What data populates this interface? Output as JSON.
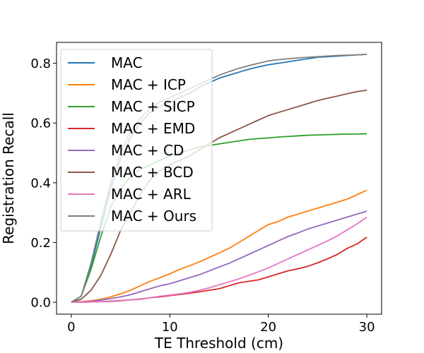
{
  "chart_data": {
    "type": "line",
    "title": "",
    "xlabel": "TE Threshold (cm)",
    "ylabel": "Registration Recall",
    "xlim": [
      -1.5,
      31.5
    ],
    "ylim": [
      -0.04,
      0.87
    ],
    "xticks": [
      0,
      10,
      20,
      30
    ],
    "xtick_labels": [
      "0",
      "10",
      "20",
      "30"
    ],
    "yticks": [
      0.0,
      0.2,
      0.4,
      0.6,
      0.8
    ],
    "ytick_labels": [
      "0.0",
      "0.2",
      "0.4",
      "0.6",
      "0.8"
    ],
    "grid": false,
    "legend_position": "upper-left",
    "x": [
      0,
      1,
      2,
      3,
      4,
      5,
      6,
      7,
      8,
      9,
      10,
      11,
      12,
      13,
      14,
      15,
      16,
      17,
      18,
      19,
      20,
      21,
      22,
      23,
      24,
      25,
      26,
      27,
      28,
      29,
      30
    ],
    "series": [
      {
        "name": "MAC",
        "color": "#1f77b4",
        "values": [
          0.0,
          0.02,
          0.12,
          0.25,
          0.38,
          0.48,
          0.55,
          0.6,
          0.635,
          0.655,
          0.67,
          0.685,
          0.7,
          0.72,
          0.735,
          0.75,
          0.76,
          0.77,
          0.78,
          0.788,
          0.795,
          0.8,
          0.805,
          0.81,
          0.815,
          0.82,
          0.822,
          0.824,
          0.826,
          0.828,
          0.83
        ]
      },
      {
        "name": "MAC + ICP",
        "color": "#ff7f0e",
        "values": [
          0.0,
          0.002,
          0.005,
          0.01,
          0.018,
          0.028,
          0.04,
          0.055,
          0.07,
          0.082,
          0.095,
          0.11,
          0.122,
          0.135,
          0.15,
          0.165,
          0.18,
          0.2,
          0.22,
          0.24,
          0.26,
          0.27,
          0.285,
          0.295,
          0.305,
          0.315,
          0.325,
          0.335,
          0.345,
          0.36,
          0.375
        ]
      },
      {
        "name": "MAC + SICP",
        "color": "#2ca02c",
        "values": [
          0.0,
          0.02,
          0.11,
          0.22,
          0.32,
          0.38,
          0.42,
          0.445,
          0.46,
          0.475,
          0.49,
          0.5,
          0.51,
          0.52,
          0.525,
          0.53,
          0.535,
          0.54,
          0.545,
          0.548,
          0.55,
          0.553,
          0.555,
          0.557,
          0.559,
          0.56,
          0.561,
          0.562,
          0.563,
          0.563,
          0.564
        ]
      },
      {
        "name": "MAC + EMD",
        "color": "#d62728",
        "values": [
          0.0,
          0.0,
          0.001,
          0.002,
          0.003,
          0.005,
          0.008,
          0.01,
          0.015,
          0.018,
          0.022,
          0.026,
          0.03,
          0.035,
          0.04,
          0.045,
          0.055,
          0.065,
          0.07,
          0.075,
          0.085,
          0.095,
          0.105,
          0.112,
          0.12,
          0.132,
          0.145,
          0.16,
          0.18,
          0.195,
          0.218
        ]
      },
      {
        "name": "MAC + CD",
        "color": "#9467bd",
        "values": [
          0.0,
          0.001,
          0.003,
          0.007,
          0.012,
          0.018,
          0.025,
          0.035,
          0.045,
          0.055,
          0.062,
          0.072,
          0.082,
          0.092,
          0.105,
          0.118,
          0.13,
          0.145,
          0.16,
          0.175,
          0.19,
          0.205,
          0.22,
          0.232,
          0.245,
          0.255,
          0.265,
          0.275,
          0.285,
          0.295,
          0.305
        ]
      },
      {
        "name": "MAC + BCD",
        "color": "#8c564b",
        "values": [
          0.0,
          0.01,
          0.04,
          0.09,
          0.16,
          0.24,
          0.3,
          0.36,
          0.41,
          0.44,
          0.46,
          0.475,
          0.49,
          0.51,
          0.53,
          0.55,
          0.565,
          0.58,
          0.595,
          0.61,
          0.625,
          0.635,
          0.645,
          0.655,
          0.665,
          0.675,
          0.683,
          0.69,
          0.698,
          0.705,
          0.71
        ]
      },
      {
        "name": "MAC + ARL",
        "color": "#e377c2",
        "values": [
          0.0,
          0.0,
          0.001,
          0.002,
          0.004,
          0.006,
          0.008,
          0.011,
          0.015,
          0.02,
          0.024,
          0.028,
          0.033,
          0.04,
          0.048,
          0.058,
          0.068,
          0.078,
          0.09,
          0.102,
          0.115,
          0.13,
          0.145,
          0.16,
          0.175,
          0.19,
          0.205,
          0.222,
          0.242,
          0.262,
          0.285
        ]
      },
      {
        "name": "MAC + Ours",
        "color": "#7f7f7f",
        "values": [
          0.0,
          0.02,
          0.13,
          0.27,
          0.4,
          0.5,
          0.57,
          0.615,
          0.65,
          0.67,
          0.685,
          0.7,
          0.715,
          0.73,
          0.745,
          0.76,
          0.772,
          0.783,
          0.792,
          0.8,
          0.808,
          0.812,
          0.815,
          0.818,
          0.82,
          0.822,
          0.824,
          0.826,
          0.827,
          0.828,
          0.83
        ]
      }
    ]
  }
}
